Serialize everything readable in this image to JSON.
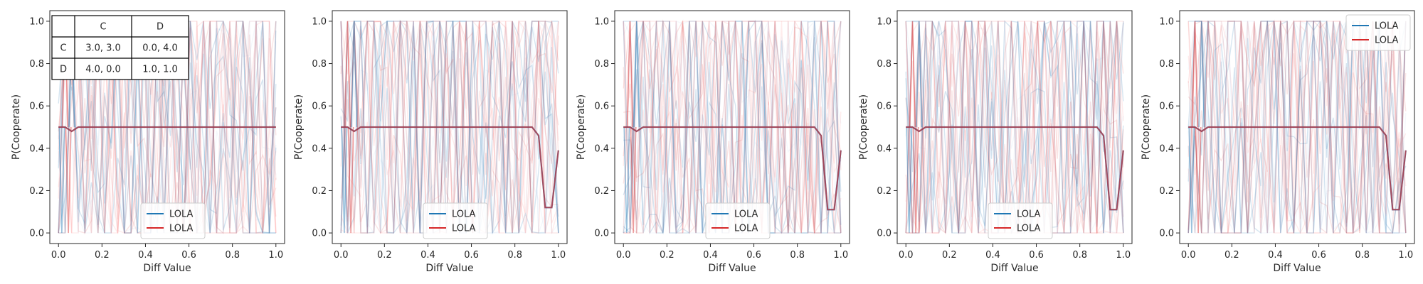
{
  "chart_data": [
    {
      "type": "line",
      "xlabel": "Diff Value",
      "ylabel": "P(Cooperate)",
      "xlim": [
        -0.04,
        1.04
      ],
      "ylim": [
        -0.05,
        1.05
      ],
      "xticks": [
        "0.0",
        "0.2",
        "0.4",
        "0.6",
        "0.8",
        "1.0"
      ],
      "yticks": [
        "0.0",
        "0.2",
        "0.4",
        "0.6",
        "0.8",
        "1.0"
      ],
      "legend": {
        "placement": "bottom-center",
        "entries": [
          {
            "label": "LOLA",
            "color": "#1f77b4"
          },
          {
            "label": "LOLA",
            "color": "#d62728"
          }
        ]
      },
      "payoff_table": {
        "col_headers": [
          "C",
          "D"
        ],
        "rows": [
          {
            "label": "C",
            "cells": [
              "3.0, 3.0",
              "0.0, 4.0"
            ]
          },
          {
            "label": "D",
            "cells": [
              "4.0, 0.0",
              "1.0, 1.0"
            ]
          }
        ]
      },
      "x": [
        0.0,
        0.0303,
        0.0606,
        0.0909,
        0.1212,
        0.1515,
        0.1818,
        0.2121,
        0.2424,
        0.2727,
        0.303,
        0.3333,
        0.3636,
        0.3939,
        0.4242,
        0.4545,
        0.4848,
        0.5152,
        0.5455,
        0.5758,
        0.6061,
        0.6364,
        0.6667,
        0.697,
        0.7273,
        0.7576,
        0.7879,
        0.8182,
        0.8485,
        0.8788,
        0.9091,
        0.9394,
        0.9697,
        1.0
      ],
      "series": [
        {
          "name": "LOLA",
          "color": "#1f77b4",
          "values": [
            0.5,
            0.5,
            0.48,
            0.5,
            0.5,
            0.5,
            0.5,
            0.5,
            0.5,
            0.5,
            0.5,
            0.5,
            0.5,
            0.5,
            0.5,
            0.5,
            0.5,
            0.5,
            0.5,
            0.5,
            0.5,
            0.5,
            0.5,
            0.5,
            0.5,
            0.5,
            0.5,
            0.5,
            0.5,
            0.5,
            0.5,
            0.5,
            0.5,
            0.5
          ]
        },
        {
          "name": "LOLA",
          "color": "#d62728",
          "values": [
            0.5,
            0.5,
            0.48,
            0.5,
            0.5,
            0.5,
            0.5,
            0.5,
            0.5,
            0.5,
            0.5,
            0.5,
            0.5,
            0.5,
            0.5,
            0.5,
            0.5,
            0.5,
            0.5,
            0.5,
            0.5,
            0.5,
            0.5,
            0.5,
            0.5,
            0.5,
            0.5,
            0.5,
            0.5,
            0.5,
            0.5,
            0.5,
            0.5,
            0.5
          ]
        }
      ]
    },
    {
      "type": "line",
      "xlabel": "Diff Value",
      "ylabel": "P(Cooperate)",
      "xlim": [
        -0.04,
        1.04
      ],
      "ylim": [
        -0.05,
        1.05
      ],
      "xticks": [
        "0.0",
        "0.2",
        "0.4",
        "0.6",
        "0.8",
        "1.0"
      ],
      "yticks": [
        "0.0",
        "0.2",
        "0.4",
        "0.6",
        "0.8",
        "1.0"
      ],
      "legend": {
        "placement": "bottom-center",
        "entries": [
          {
            "label": "LOLA",
            "color": "#1f77b4"
          },
          {
            "label": "LOLA",
            "color": "#d62728"
          }
        ]
      },
      "x": [
        0.0,
        0.0303,
        0.0606,
        0.0909,
        0.1212,
        0.1515,
        0.1818,
        0.2121,
        0.2424,
        0.2727,
        0.303,
        0.3333,
        0.3636,
        0.3939,
        0.4242,
        0.4545,
        0.4848,
        0.5152,
        0.5455,
        0.5758,
        0.6061,
        0.6364,
        0.6667,
        0.697,
        0.7273,
        0.7576,
        0.7879,
        0.8182,
        0.8485,
        0.8788,
        0.9091,
        0.9394,
        0.9697,
        1.0
      ],
      "series": [
        {
          "name": "LOLA",
          "color": "#1f77b4",
          "values": [
            0.5,
            0.5,
            0.48,
            0.5,
            0.5,
            0.5,
            0.5,
            0.5,
            0.5,
            0.5,
            0.5,
            0.5,
            0.5,
            0.5,
            0.5,
            0.5,
            0.5,
            0.5,
            0.5,
            0.5,
            0.5,
            0.5,
            0.5,
            0.5,
            0.5,
            0.5,
            0.5,
            0.5,
            0.5,
            0.5,
            0.46,
            0.12,
            0.12,
            0.39
          ]
        },
        {
          "name": "LOLA",
          "color": "#d62728",
          "values": [
            0.5,
            0.5,
            0.48,
            0.5,
            0.5,
            0.5,
            0.5,
            0.5,
            0.5,
            0.5,
            0.5,
            0.5,
            0.5,
            0.5,
            0.5,
            0.5,
            0.5,
            0.5,
            0.5,
            0.5,
            0.5,
            0.5,
            0.5,
            0.5,
            0.5,
            0.5,
            0.5,
            0.5,
            0.5,
            0.5,
            0.46,
            0.12,
            0.12,
            0.39
          ]
        }
      ]
    },
    {
      "type": "line",
      "xlabel": "Diff Value",
      "ylabel": "P(Cooperate)",
      "xlim": [
        -0.04,
        1.04
      ],
      "ylim": [
        -0.05,
        1.05
      ],
      "xticks": [
        "0.0",
        "0.2",
        "0.4",
        "0.6",
        "0.8",
        "1.0"
      ],
      "yticks": [
        "0.0",
        "0.2",
        "0.4",
        "0.6",
        "0.8",
        "1.0"
      ],
      "legend": {
        "placement": "bottom-center",
        "entries": [
          {
            "label": "LOLA",
            "color": "#1f77b4"
          },
          {
            "label": "LOLA",
            "color": "#d62728"
          }
        ]
      },
      "x": [
        0.0,
        0.0303,
        0.0606,
        0.0909,
        0.1212,
        0.1515,
        0.1818,
        0.2121,
        0.2424,
        0.2727,
        0.303,
        0.3333,
        0.3636,
        0.3939,
        0.4242,
        0.4545,
        0.4848,
        0.5152,
        0.5455,
        0.5758,
        0.6061,
        0.6364,
        0.6667,
        0.697,
        0.7273,
        0.7576,
        0.7879,
        0.8182,
        0.8485,
        0.8788,
        0.9091,
        0.9394,
        0.9697,
        1.0
      ],
      "series": [
        {
          "name": "LOLA",
          "color": "#1f77b4",
          "values": [
            0.5,
            0.5,
            0.48,
            0.5,
            0.5,
            0.5,
            0.5,
            0.5,
            0.5,
            0.5,
            0.5,
            0.5,
            0.5,
            0.5,
            0.5,
            0.5,
            0.5,
            0.5,
            0.5,
            0.5,
            0.5,
            0.5,
            0.5,
            0.5,
            0.5,
            0.5,
            0.5,
            0.5,
            0.5,
            0.5,
            0.46,
            0.11,
            0.11,
            0.39
          ]
        },
        {
          "name": "LOLA",
          "color": "#d62728",
          "values": [
            0.5,
            0.5,
            0.48,
            0.5,
            0.5,
            0.5,
            0.5,
            0.5,
            0.5,
            0.5,
            0.5,
            0.5,
            0.5,
            0.5,
            0.5,
            0.5,
            0.5,
            0.5,
            0.5,
            0.5,
            0.5,
            0.5,
            0.5,
            0.5,
            0.5,
            0.5,
            0.5,
            0.5,
            0.5,
            0.5,
            0.46,
            0.11,
            0.11,
            0.39
          ]
        }
      ]
    },
    {
      "type": "line",
      "xlabel": "Diff Value",
      "ylabel": "P(Cooperate)",
      "xlim": [
        -0.04,
        1.04
      ],
      "ylim": [
        -0.05,
        1.05
      ],
      "xticks": [
        "0.0",
        "0.2",
        "0.4",
        "0.6",
        "0.8",
        "1.0"
      ],
      "yticks": [
        "0.0",
        "0.2",
        "0.4",
        "0.6",
        "0.8",
        "1.0"
      ],
      "legend": {
        "placement": "bottom-center",
        "entries": [
          {
            "label": "LOLA",
            "color": "#1f77b4"
          },
          {
            "label": "LOLA",
            "color": "#d62728"
          }
        ]
      },
      "x": [
        0.0,
        0.0303,
        0.0606,
        0.0909,
        0.1212,
        0.1515,
        0.1818,
        0.2121,
        0.2424,
        0.2727,
        0.303,
        0.3333,
        0.3636,
        0.3939,
        0.4242,
        0.4545,
        0.4848,
        0.5152,
        0.5455,
        0.5758,
        0.6061,
        0.6364,
        0.6667,
        0.697,
        0.7273,
        0.7576,
        0.7879,
        0.8182,
        0.8485,
        0.8788,
        0.9091,
        0.9394,
        0.9697,
        1.0
      ],
      "series": [
        {
          "name": "LOLA",
          "color": "#1f77b4",
          "values": [
            0.5,
            0.5,
            0.48,
            0.5,
            0.5,
            0.5,
            0.5,
            0.5,
            0.5,
            0.5,
            0.5,
            0.5,
            0.5,
            0.5,
            0.5,
            0.5,
            0.5,
            0.5,
            0.5,
            0.5,
            0.5,
            0.5,
            0.5,
            0.5,
            0.5,
            0.5,
            0.5,
            0.5,
            0.5,
            0.5,
            0.46,
            0.11,
            0.11,
            0.39
          ]
        },
        {
          "name": "LOLA",
          "color": "#d62728",
          "values": [
            0.5,
            0.5,
            0.48,
            0.5,
            0.5,
            0.5,
            0.5,
            0.5,
            0.5,
            0.5,
            0.5,
            0.5,
            0.5,
            0.5,
            0.5,
            0.5,
            0.5,
            0.5,
            0.5,
            0.5,
            0.5,
            0.5,
            0.5,
            0.5,
            0.5,
            0.5,
            0.5,
            0.5,
            0.5,
            0.5,
            0.46,
            0.11,
            0.11,
            0.39
          ]
        }
      ]
    },
    {
      "type": "line",
      "xlabel": "Diff Value",
      "ylabel": "P(Cooperate)",
      "xlim": [
        -0.04,
        1.04
      ],
      "ylim": [
        -0.05,
        1.05
      ],
      "xticks": [
        "0.0",
        "0.2",
        "0.4",
        "0.6",
        "0.8",
        "1.0"
      ],
      "yticks": [
        "0.0",
        "0.2",
        "0.4",
        "0.6",
        "0.8",
        "1.0"
      ],
      "legend": {
        "placement": "top-right",
        "entries": [
          {
            "label": "LOLA",
            "color": "#1f77b4"
          },
          {
            "label": "LOLA",
            "color": "#d62728"
          }
        ]
      },
      "x": [
        0.0,
        0.0303,
        0.0606,
        0.0909,
        0.1212,
        0.1515,
        0.1818,
        0.2121,
        0.2424,
        0.2727,
        0.303,
        0.3333,
        0.3636,
        0.3939,
        0.4242,
        0.4545,
        0.4848,
        0.5152,
        0.5455,
        0.5758,
        0.6061,
        0.6364,
        0.6667,
        0.697,
        0.7273,
        0.7576,
        0.7879,
        0.8182,
        0.8485,
        0.8788,
        0.9091,
        0.9394,
        0.9697,
        1.0
      ],
      "series": [
        {
          "name": "LOLA",
          "color": "#1f77b4",
          "values": [
            0.5,
            0.5,
            0.48,
            0.5,
            0.5,
            0.5,
            0.5,
            0.5,
            0.5,
            0.5,
            0.5,
            0.5,
            0.5,
            0.5,
            0.5,
            0.5,
            0.5,
            0.5,
            0.5,
            0.5,
            0.5,
            0.5,
            0.5,
            0.5,
            0.5,
            0.5,
            0.5,
            0.5,
            0.5,
            0.5,
            0.46,
            0.11,
            0.11,
            0.39
          ]
        },
        {
          "name": "LOLA",
          "color": "#d62728",
          "values": [
            0.5,
            0.5,
            0.48,
            0.5,
            0.5,
            0.5,
            0.5,
            0.5,
            0.5,
            0.5,
            0.5,
            0.5,
            0.5,
            0.5,
            0.5,
            0.5,
            0.5,
            0.5,
            0.5,
            0.5,
            0.5,
            0.5,
            0.5,
            0.5,
            0.5,
            0.5,
            0.5,
            0.5,
            0.5,
            0.5,
            0.46,
            0.11,
            0.11,
            0.39
          ]
        }
      ]
    }
  ]
}
